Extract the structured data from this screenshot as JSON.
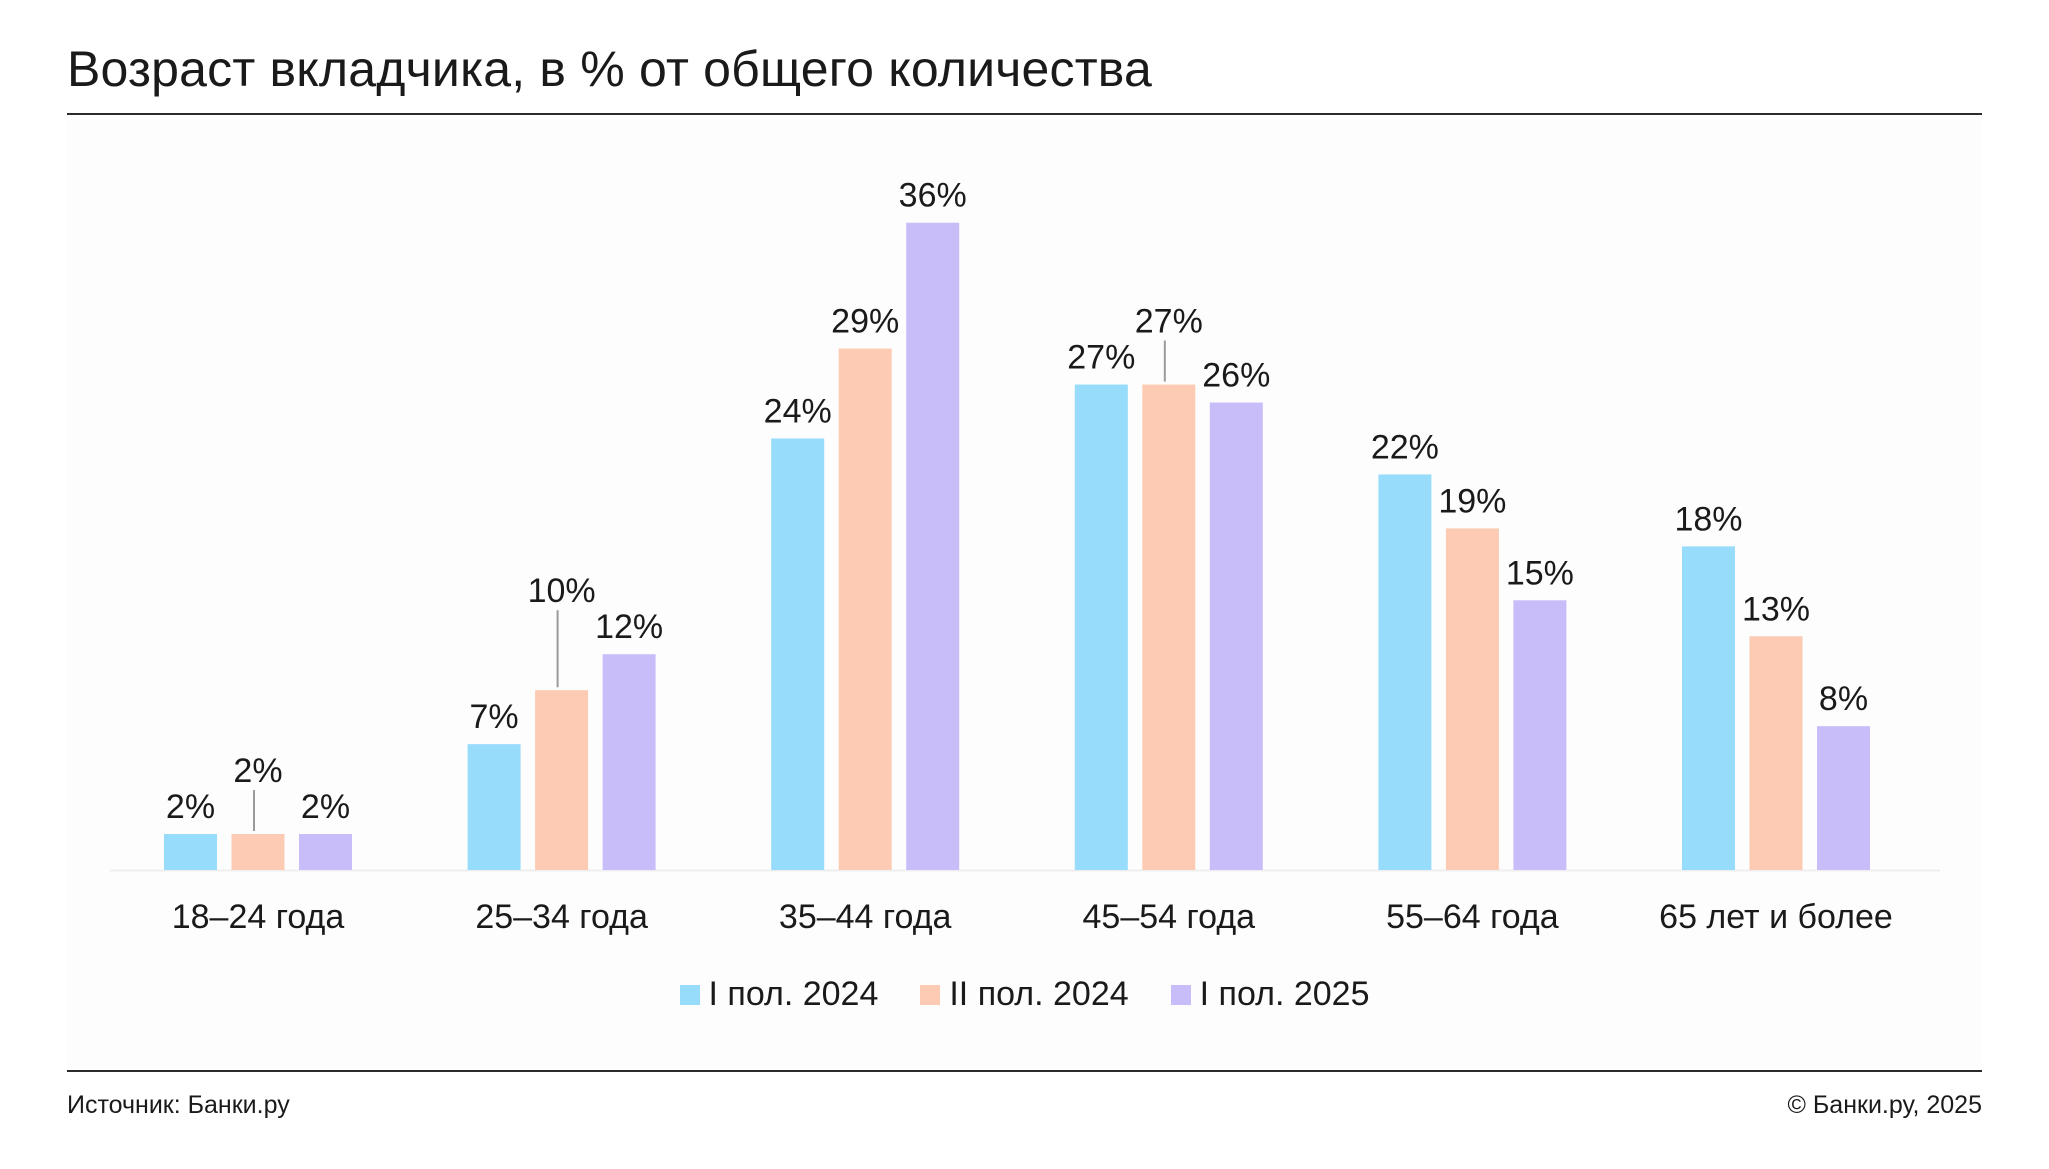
{
  "title": "Возраст вкладчика, в % от общего количества",
  "footer": {
    "source": "Источник: Банки.ру",
    "copyright": "© Банки.ру, 2025"
  },
  "colors": {
    "series_1": "#97dcfb",
    "series_2": "#fdcbb3",
    "series_3": "#c8bdf9"
  },
  "chart_data": {
    "type": "bar",
    "title": "Возраст вкладчика, в % от общего количества",
    "xlabel": "",
    "ylabel": "",
    "unit": "%",
    "ylim": [
      0,
      40
    ],
    "grid": false,
    "legend_position": "bottom-center",
    "categories": [
      "18–24 года",
      "25–34 года",
      "35–44 года",
      "45–54 года",
      "55–64 года",
      "65 лет и более"
    ],
    "series": [
      {
        "name": "I пол. 2024",
        "color": "#97dcfb",
        "values": [
          2,
          7,
          24,
          27,
          22,
          18
        ]
      },
      {
        "name": "II пол. 2024",
        "color": "#fdcbb3",
        "values": [
          2,
          10,
          29,
          27,
          19,
          13
        ]
      },
      {
        "name": "I пол. 2025",
        "color": "#c8bdf9",
        "values": [
          2,
          12,
          36,
          26,
          15,
          8
        ]
      }
    ],
    "data_labels": [
      [
        "2%",
        "7%",
        "24%",
        "27%",
        "22%",
        "18%"
      ],
      [
        "2%",
        "10%",
        "29%",
        "27%",
        "19%",
        "13%"
      ],
      [
        "2%",
        "12%",
        "36%",
        "26%",
        "15%",
        "8%"
      ]
    ]
  }
}
